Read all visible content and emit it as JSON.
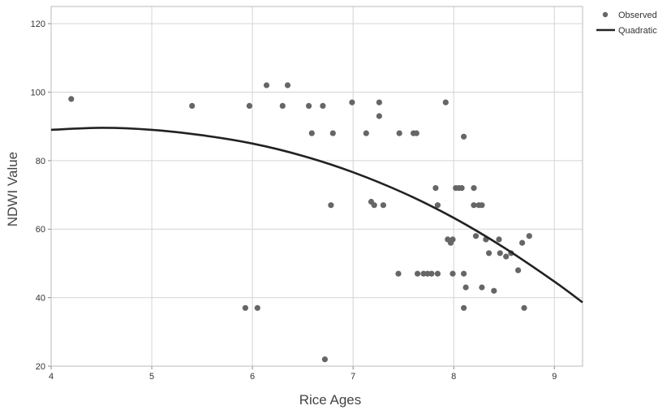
{
  "chart_data": {
    "type": "scatter",
    "xlabel": "Rice Ages",
    "ylabel": "NDWI Value",
    "xlim": [
      4,
      9.28
    ],
    "ylim": [
      20,
      125
    ],
    "x_ticks": [
      4,
      5,
      6,
      7,
      8,
      9
    ],
    "y_ticks": [
      20,
      40,
      60,
      80,
      100,
      120
    ],
    "grid": true,
    "legend_position": "top-right",
    "series": [
      {
        "name": "Observed",
        "kind": "points",
        "color": "#666666",
        "points": [
          [
            4.2,
            98
          ],
          [
            5.4,
            96
          ],
          [
            5.93,
            37
          ],
          [
            5.97,
            96
          ],
          [
            6.05,
            37
          ],
          [
            6.14,
            102
          ],
          [
            6.3,
            96
          ],
          [
            6.35,
            102
          ],
          [
            6.56,
            96
          ],
          [
            6.59,
            88
          ],
          [
            6.7,
            96
          ],
          [
            6.72,
            22
          ],
          [
            6.78,
            67
          ],
          [
            6.8,
            88
          ],
          [
            6.99,
            97
          ],
          [
            7.13,
            88
          ],
          [
            7.18,
            68
          ],
          [
            7.21,
            67
          ],
          [
            7.26,
            93
          ],
          [
            7.26,
            97
          ],
          [
            7.3,
            67
          ],
          [
            7.45,
            47
          ],
          [
            7.46,
            88
          ],
          [
            7.6,
            88
          ],
          [
            7.63,
            88
          ],
          [
            7.64,
            47
          ],
          [
            7.7,
            47
          ],
          [
            7.74,
            47
          ],
          [
            7.78,
            47
          ],
          [
            7.82,
            72
          ],
          [
            7.84,
            67
          ],
          [
            7.84,
            47
          ],
          [
            7.92,
            97
          ],
          [
            7.94,
            57
          ],
          [
            7.97,
            56
          ],
          [
            7.99,
            57
          ],
          [
            7.99,
            47
          ],
          [
            8.02,
            72
          ],
          [
            8.05,
            72
          ],
          [
            8.08,
            72
          ],
          [
            8.1,
            87
          ],
          [
            8.1,
            47
          ],
          [
            8.1,
            37
          ],
          [
            8.12,
            43
          ],
          [
            8.2,
            72
          ],
          [
            8.2,
            67
          ],
          [
            8.22,
            58
          ],
          [
            8.25,
            67
          ],
          [
            8.28,
            67
          ],
          [
            8.28,
            43
          ],
          [
            8.32,
            57
          ],
          [
            8.35,
            53
          ],
          [
            8.4,
            42
          ],
          [
            8.45,
            57
          ],
          [
            8.46,
            53
          ],
          [
            8.52,
            52
          ],
          [
            8.57,
            53
          ],
          [
            8.64,
            48
          ],
          [
            8.68,
            56
          ],
          [
            8.7,
            37
          ],
          [
            8.75,
            58
          ]
        ]
      },
      {
        "name": "Quadratic",
        "kind": "line",
        "color": "#222222",
        "points": [
          [
            4,
            89
          ],
          [
            4.5,
            89.6
          ],
          [
            5,
            89
          ],
          [
            5.5,
            87.4
          ],
          [
            6,
            85
          ],
          [
            6.5,
            81.4
          ],
          [
            7,
            76.6
          ],
          [
            7.5,
            70.6
          ],
          [
            8,
            63.3
          ],
          [
            8.5,
            54.6
          ],
          [
            9,
            44.7
          ],
          [
            9.28,
            38.6
          ]
        ]
      }
    ]
  }
}
